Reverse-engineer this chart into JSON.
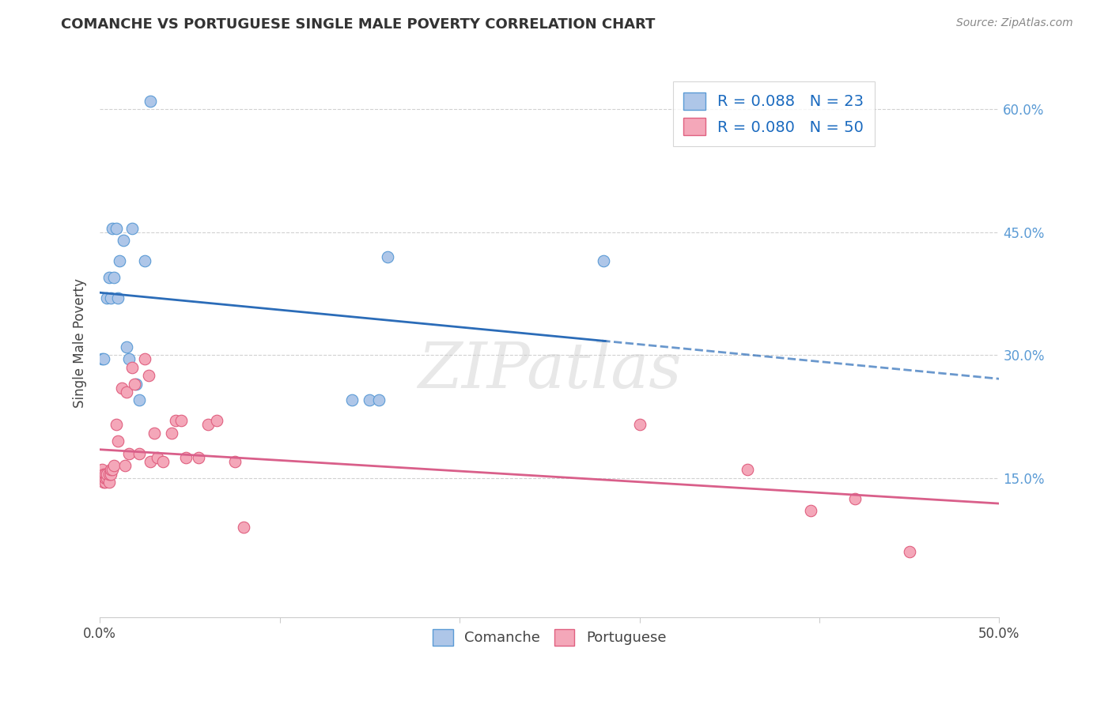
{
  "title": "COMANCHE VS PORTUGUESE SINGLE MALE POVERTY CORRELATION CHART",
  "source": "Source: ZipAtlas.com",
  "ylabel": "Single Male Poverty",
  "right_yticks": [
    "15.0%",
    "30.0%",
    "45.0%",
    "60.0%"
  ],
  "right_ytick_vals": [
    0.15,
    0.3,
    0.45,
    0.6
  ],
  "xlim": [
    0.0,
    0.5
  ],
  "ylim": [
    -0.02,
    0.65
  ],
  "comanche_x": [
    0.001,
    0.002,
    0.004,
    0.005,
    0.006,
    0.007,
    0.008,
    0.009,
    0.01,
    0.011,
    0.013,
    0.015,
    0.016,
    0.018,
    0.02,
    0.022,
    0.025,
    0.028,
    0.14,
    0.15,
    0.155,
    0.16,
    0.28
  ],
  "comanche_y": [
    0.295,
    0.295,
    0.37,
    0.395,
    0.37,
    0.455,
    0.395,
    0.455,
    0.37,
    0.415,
    0.44,
    0.31,
    0.295,
    0.455,
    0.265,
    0.245,
    0.415,
    0.61,
    0.245,
    0.245,
    0.245,
    0.42,
    0.415
  ],
  "portuguese_x": [
    0.001,
    0.001,
    0.001,
    0.001,
    0.001,
    0.001,
    0.002,
    0.002,
    0.002,
    0.002,
    0.003,
    0.003,
    0.003,
    0.004,
    0.004,
    0.005,
    0.005,
    0.006,
    0.006,
    0.007,
    0.008,
    0.009,
    0.01,
    0.012,
    0.014,
    0.015,
    0.016,
    0.018,
    0.019,
    0.022,
    0.025,
    0.027,
    0.028,
    0.03,
    0.032,
    0.035,
    0.04,
    0.042,
    0.045,
    0.048,
    0.055,
    0.06,
    0.065,
    0.075,
    0.08,
    0.3,
    0.36,
    0.395,
    0.42,
    0.45
  ],
  "portuguese_y": [
    0.15,
    0.15,
    0.15,
    0.155,
    0.155,
    0.16,
    0.145,
    0.15,
    0.15,
    0.155,
    0.145,
    0.15,
    0.155,
    0.15,
    0.155,
    0.145,
    0.155,
    0.155,
    0.16,
    0.16,
    0.165,
    0.215,
    0.195,
    0.26,
    0.165,
    0.255,
    0.18,
    0.285,
    0.265,
    0.18,
    0.295,
    0.275,
    0.17,
    0.205,
    0.175,
    0.17,
    0.205,
    0.22,
    0.22,
    0.175,
    0.175,
    0.215,
    0.22,
    0.17,
    0.09,
    0.215,
    0.16,
    0.11,
    0.125,
    0.06
  ],
  "comanche_color": "#aec6e8",
  "comanche_edge_color": "#5b9bd5",
  "portuguese_color": "#f4a7b9",
  "portuguese_edge_color": "#e06080",
  "comanche_line_color": "#2b6cb8",
  "portuguese_line_color": "#d95f8a",
  "watermark": "ZIPatlas",
  "background_color": "#ffffff",
  "grid_color": "#cccccc",
  "legend1_blue_label": "R = 0.088   N = 23",
  "legend1_pink_label": "R = 0.080   N = 50"
}
